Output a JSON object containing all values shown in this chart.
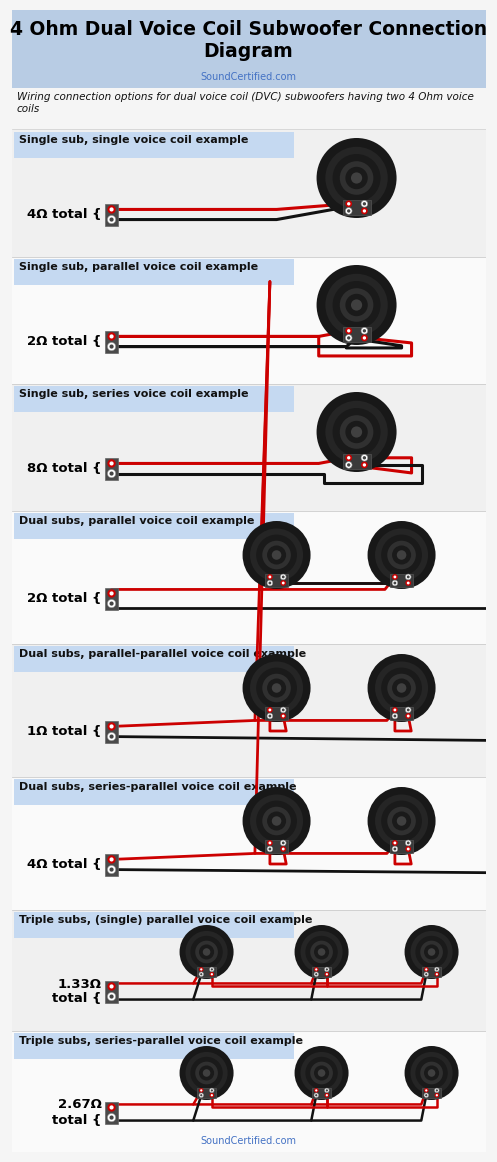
{
  "title": "4 Ohm Dual Voice Coil Subwoofer Connection\nDiagram",
  "subtitle": "SoundCertified.com",
  "intro_text": "Wiring connection options for dual voice coil (DVC) subwoofers having two 4 Ohm voice\ncoils",
  "header_bg": "#b8cce4",
  "section_bg": "#c5d9f1",
  "body_bg": "#f5f5f5",
  "title_color": "#000000",
  "subtitle_color": "#4472c4",
  "footer_text": "SoundCertified.com",
  "red_color": "#cc0000",
  "black_color": "#111111",
  "sections": [
    {
      "label": "Single sub, single voice coil example",
      "impedance": "4Ω total {",
      "nsubs": 1,
      "style": "series"
    },
    {
      "label": "Single sub, parallel voice coil example",
      "impedance": "2Ω total {",
      "nsubs": 1,
      "style": "parallel"
    },
    {
      "label": "Single sub, series voice coil example",
      "impedance": "8Ω total {",
      "nsubs": 1,
      "style": "series_coil"
    },
    {
      "label": "Dual subs, parallel voice coil example",
      "impedance": "2Ω total {",
      "nsubs": 2,
      "style": "parallel"
    },
    {
      "label": "Dual subs, parallel-parallel voice coil example",
      "impedance": "1Ω total {",
      "nsubs": 2,
      "style": "par_par"
    },
    {
      "label": "Dual subs, series-parallel voice coil example",
      "impedance": "4Ω total {",
      "nsubs": 2,
      "style": "ser_par"
    },
    {
      "label": "Triple subs, (single) parallel voice coil example",
      "impedance": "1.33Ω\ntotal {",
      "nsubs": 3,
      "style": "parallel"
    },
    {
      "label": "Triple subs, series-parallel voice coil example",
      "impedance": "2.67Ω\ntotal {",
      "nsubs": 3,
      "style": "ser_par"
    }
  ]
}
